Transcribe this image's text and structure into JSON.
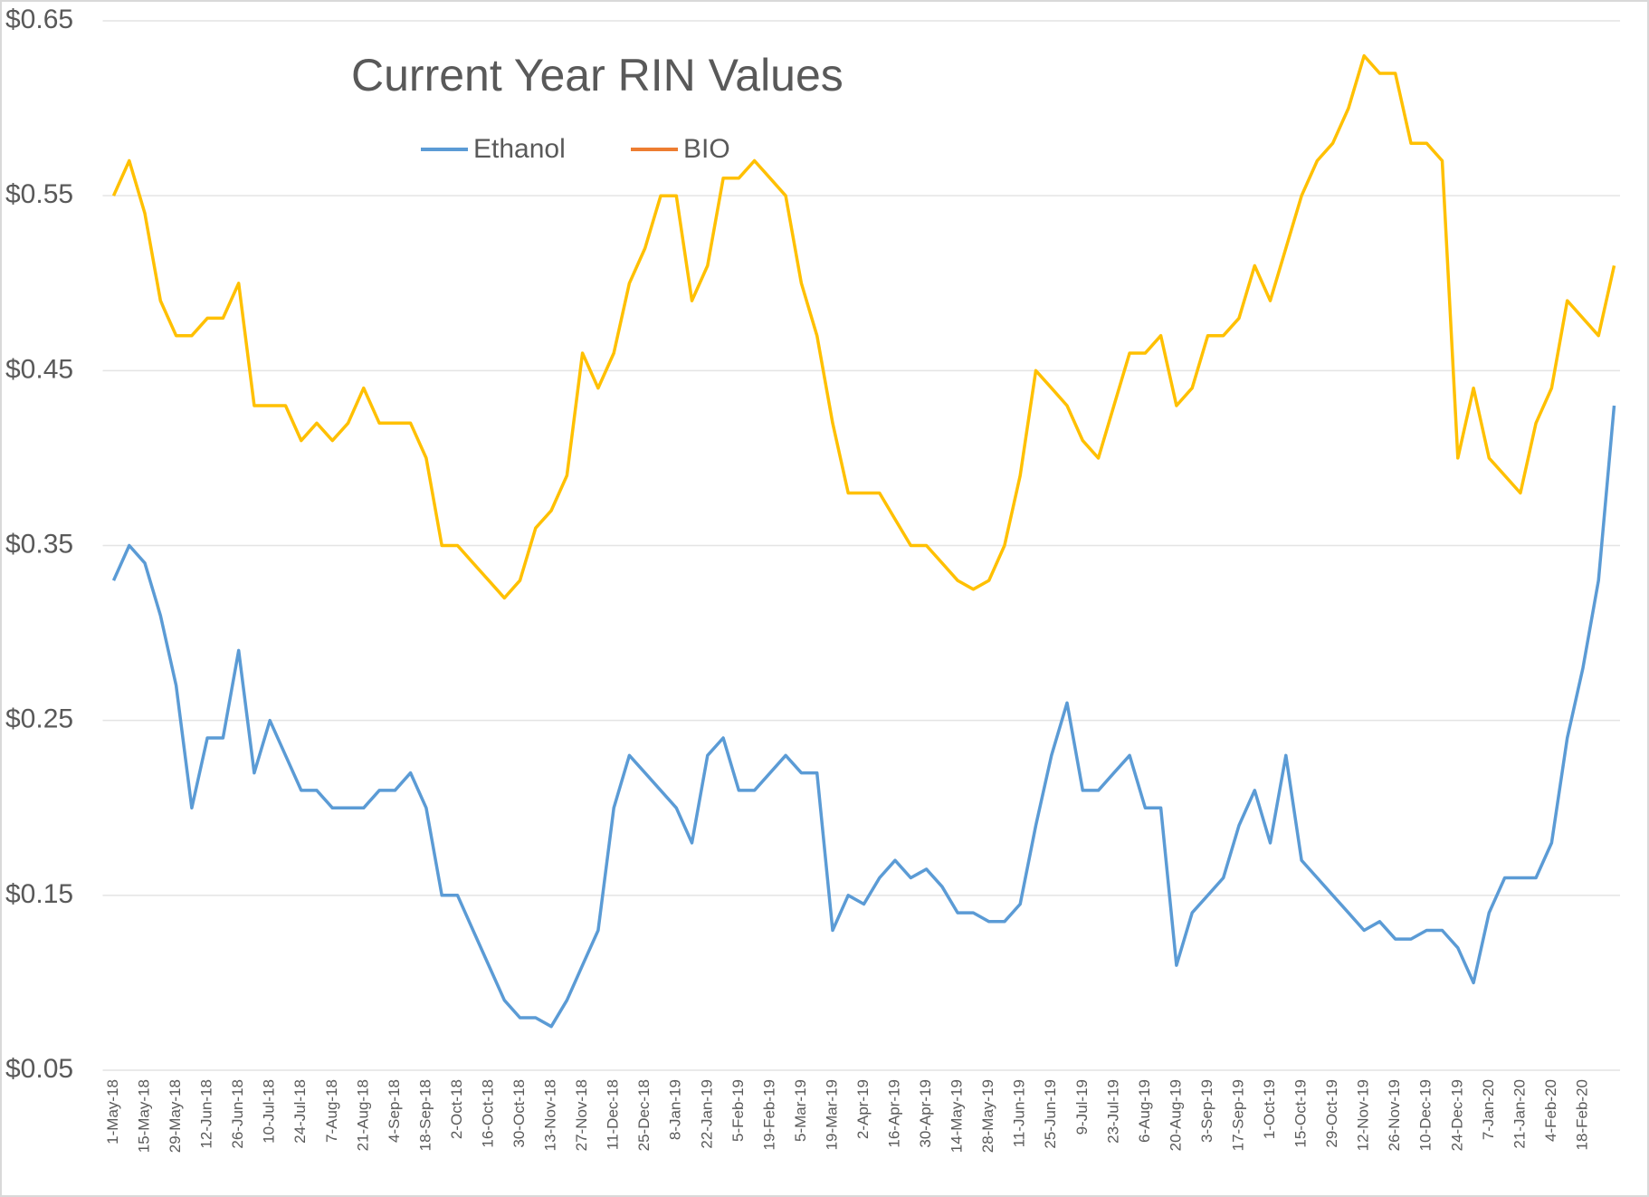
{
  "chart_data": {
    "type": "line",
    "title": "Current Year RIN Values",
    "categories": [
      "1-May-18",
      null,
      "15-May-18",
      null,
      "29-May-18",
      null,
      "12-Jun-18",
      null,
      "26-Jun-18",
      null,
      "10-Jul-18",
      null,
      "24-Jul-18",
      null,
      "7-Aug-18",
      null,
      "21-Aug-18",
      null,
      "4-Sep-18",
      null,
      "18-Sep-18",
      null,
      "2-Oct-18",
      null,
      "16-Oct-18",
      null,
      "30-Oct-18",
      null,
      "13-Nov-18",
      null,
      "27-Nov-18",
      null,
      "11-Dec-18",
      null,
      "25-Dec-18",
      null,
      "8-Jan-19",
      null,
      "22-Jan-19",
      null,
      "5-Feb-19",
      null,
      "19-Feb-19",
      null,
      "5-Mar-19",
      null,
      "19-Mar-19",
      null,
      "2-Apr-19",
      null,
      "16-Apr-19",
      null,
      "30-Apr-19",
      null,
      "14-May-19",
      null,
      "28-May-19",
      null,
      "11-Jun-19",
      null,
      "25-Jun-19",
      null,
      "9-Jul-19",
      null,
      "23-Jul-19",
      null,
      "6-Aug-19",
      null,
      "20-Aug-19",
      null,
      "3-Sep-19",
      null,
      "17-Sep-19",
      null,
      "1-Oct-19",
      null,
      "15-Oct-19",
      null,
      "29-Oct-19",
      null,
      "12-Nov-19",
      null,
      "26-Nov-19",
      null,
      "10-Dec-19",
      null,
      "24-Dec-19",
      null,
      "7-Jan-20",
      null,
      "21-Jan-20",
      null,
      "4-Feb-20",
      null,
      "18-Feb-20",
      null,
      null
    ],
    "series": [
      {
        "name": "Ethanol",
        "color": "#5b9bd5",
        "legend_color": "#5b9bd5",
        "values": [
          0.33,
          0.35,
          0.34,
          0.31,
          0.27,
          0.2,
          0.24,
          0.24,
          0.29,
          0.22,
          0.25,
          0.23,
          0.21,
          0.21,
          0.2,
          0.2,
          0.2,
          0.21,
          0.21,
          0.22,
          0.2,
          0.15,
          0.15,
          0.13,
          0.11,
          0.09,
          0.08,
          0.08,
          0.075,
          0.09,
          0.11,
          0.13,
          0.2,
          0.23,
          0.22,
          0.21,
          0.2,
          0.18,
          0.23,
          0.24,
          0.21,
          0.21,
          0.22,
          0.23,
          0.22,
          0.22,
          0.13,
          0.15,
          0.145,
          0.16,
          0.17,
          0.16,
          0.165,
          0.155,
          0.14,
          0.14,
          0.135,
          0.135,
          0.145,
          0.19,
          0.23,
          0.26,
          0.21,
          0.21,
          0.22,
          0.23,
          0.2,
          0.2,
          0.11,
          0.14,
          0.15,
          0.16,
          0.19,
          0.21,
          0.18,
          0.23,
          0.17,
          0.16,
          0.15,
          0.14,
          0.13,
          0.135,
          0.125,
          0.125,
          0.13,
          0.13,
          0.12,
          0.1,
          0.14,
          0.16,
          0.16,
          0.16,
          0.18,
          0.24,
          0.28,
          0.33,
          0.43
        ]
      },
      {
        "name": "BIO",
        "color": "#ffc000",
        "legend_color": "#ed7d31",
        "values": [
          0.55,
          0.57,
          0.54,
          0.49,
          0.47,
          0.47,
          0.48,
          0.48,
          0.5,
          0.43,
          0.43,
          0.43,
          0.41,
          0.42,
          0.41,
          0.42,
          0.44,
          0.42,
          0.42,
          0.42,
          0.4,
          0.35,
          0.35,
          0.34,
          0.33,
          0.32,
          0.33,
          0.36,
          0.37,
          0.39,
          0.46,
          0.44,
          0.46,
          0.5,
          0.52,
          0.55,
          0.55,
          0.49,
          0.51,
          0.56,
          0.56,
          0.57,
          0.56,
          0.55,
          0.5,
          0.47,
          0.42,
          0.38,
          0.38,
          0.38,
          0.365,
          0.35,
          0.35,
          0.34,
          0.33,
          0.325,
          0.33,
          0.35,
          0.39,
          0.45,
          0.44,
          0.43,
          0.41,
          0.4,
          0.43,
          0.46,
          0.46,
          0.47,
          0.43,
          0.44,
          0.47,
          0.47,
          0.48,
          0.51,
          0.49,
          0.52,
          0.55,
          0.57,
          0.58,
          0.6,
          0.63,
          0.62,
          0.62,
          0.58,
          0.58,
          0.57,
          0.4,
          0.44,
          0.4,
          0.39,
          0.38,
          0.42,
          0.44,
          0.49,
          0.48,
          0.47,
          0.51
        ]
      }
    ],
    "ylim": [
      0.05,
      0.65
    ],
    "yticks": [
      {
        "value": 0.05,
        "label": "$0.05"
      },
      {
        "value": 0.15,
        "label": "$0.15"
      },
      {
        "value": 0.25,
        "label": "$0.25"
      },
      {
        "value": 0.35,
        "label": "$0.35"
      },
      {
        "value": 0.45,
        "label": "$0.45"
      },
      {
        "value": 0.55,
        "label": "$0.55"
      },
      {
        "value": 0.65,
        "label": "$0.65"
      }
    ],
    "grid": true
  }
}
